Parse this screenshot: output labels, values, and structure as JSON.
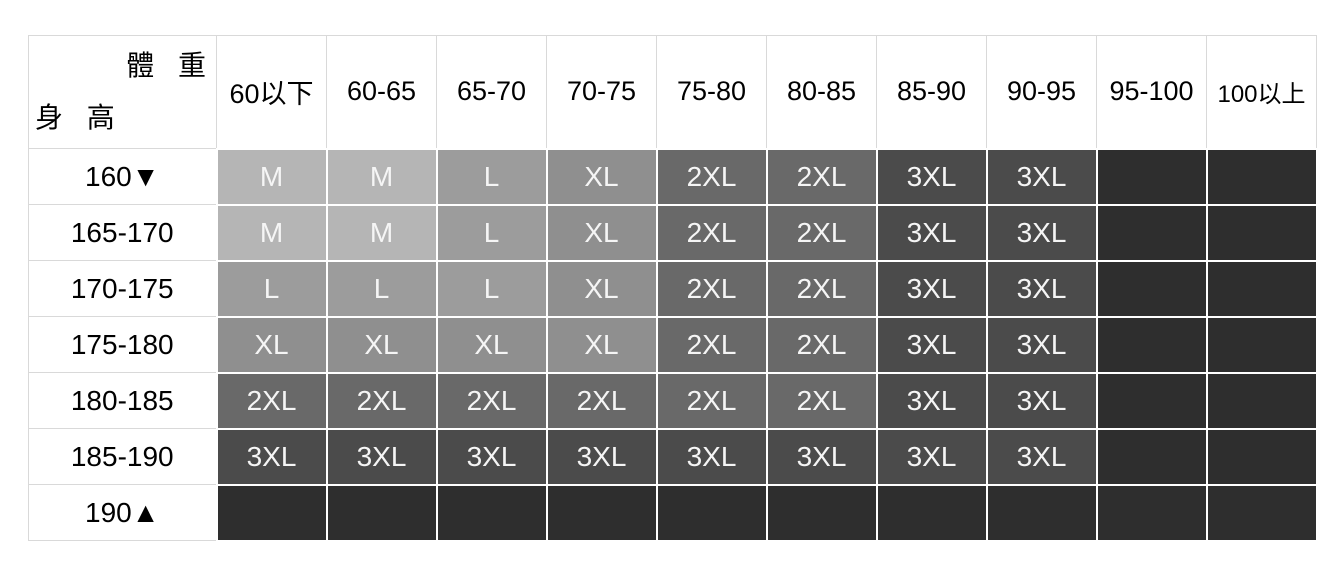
{
  "table": {
    "corner": {
      "weight_label": "體 重",
      "height_label": "身 高"
    },
    "weight_headers": [
      "60以下",
      "60-65",
      "65-70",
      "70-75",
      "75-80",
      "80-85",
      "85-90",
      "90-95",
      "95-100",
      "100以上"
    ],
    "rows": [
      {
        "height": "160▼",
        "sizes": [
          "M",
          "M",
          "L",
          "XL",
          "2XL",
          "2XL",
          "3XL",
          "3XL",
          "",
          ""
        ]
      },
      {
        "height": "165-170",
        "sizes": [
          "M",
          "M",
          "L",
          "XL",
          "2XL",
          "2XL",
          "3XL",
          "3XL",
          "",
          ""
        ]
      },
      {
        "height": "170-175",
        "sizes": [
          "L",
          "L",
          "L",
          "XL",
          "2XL",
          "2XL",
          "3XL",
          "3XL",
          "",
          ""
        ]
      },
      {
        "height": "175-180",
        "sizes": [
          "XL",
          "XL",
          "XL",
          "XL",
          "2XL",
          "2XL",
          "3XL",
          "3XL",
          "",
          ""
        ]
      },
      {
        "height": "180-185",
        "sizes": [
          "2XL",
          "2XL",
          "2XL",
          "2XL",
          "2XL",
          "2XL",
          "3XL",
          "3XL",
          "",
          ""
        ]
      },
      {
        "height": "185-190",
        "sizes": [
          "3XL",
          "3XL",
          "3XL",
          "3XL",
          "3XL",
          "3XL",
          "3XL",
          "3XL",
          "",
          ""
        ]
      },
      {
        "height": "190▲",
        "sizes": [
          "",
          "",
          "",
          "",
          "",
          "",
          "",
          "",
          "",
          ""
        ]
      }
    ],
    "size_colors": {
      "M": "#b5b5b5",
      "L": "#9c9c9c",
      "XL": "#8f8f8f",
      "2XL": "#696969",
      "3XL": "#4b4b4b",
      "empty": "#2e2e2e"
    }
  },
  "chart_data": {
    "type": "table",
    "x_header": "體重",
    "y_header": "身高",
    "columns": [
      "60以下",
      "60-65",
      "65-70",
      "70-75",
      "75-80",
      "80-85",
      "85-90",
      "90-95",
      "95-100",
      "100以上"
    ],
    "rows": [
      {
        "height": "160▼",
        "sizes": [
          "M",
          "M",
          "L",
          "XL",
          "2XL",
          "2XL",
          "3XL",
          "3XL",
          null,
          null
        ]
      },
      {
        "height": "165-170",
        "sizes": [
          "M",
          "M",
          "L",
          "XL",
          "2XL",
          "2XL",
          "3XL",
          "3XL",
          null,
          null
        ]
      },
      {
        "height": "170-175",
        "sizes": [
          "L",
          "L",
          "L",
          "XL",
          "2XL",
          "2XL",
          "3XL",
          "3XL",
          null,
          null
        ]
      },
      {
        "height": "175-180",
        "sizes": [
          "XL",
          "XL",
          "XL",
          "XL",
          "2XL",
          "2XL",
          "3XL",
          "3XL",
          null,
          null
        ]
      },
      {
        "height": "180-185",
        "sizes": [
          "2XL",
          "2XL",
          "2XL",
          "2XL",
          "2XL",
          "2XL",
          "3XL",
          "3XL",
          null,
          null
        ]
      },
      {
        "height": "185-190",
        "sizes": [
          "3XL",
          "3XL",
          "3XL",
          "3XL",
          "3XL",
          "3XL",
          "3XL",
          "3XL",
          null,
          null
        ]
      },
      {
        "height": "190▲",
        "sizes": [
          null,
          null,
          null,
          null,
          null,
          null,
          null,
          null,
          null,
          null
        ]
      }
    ]
  }
}
